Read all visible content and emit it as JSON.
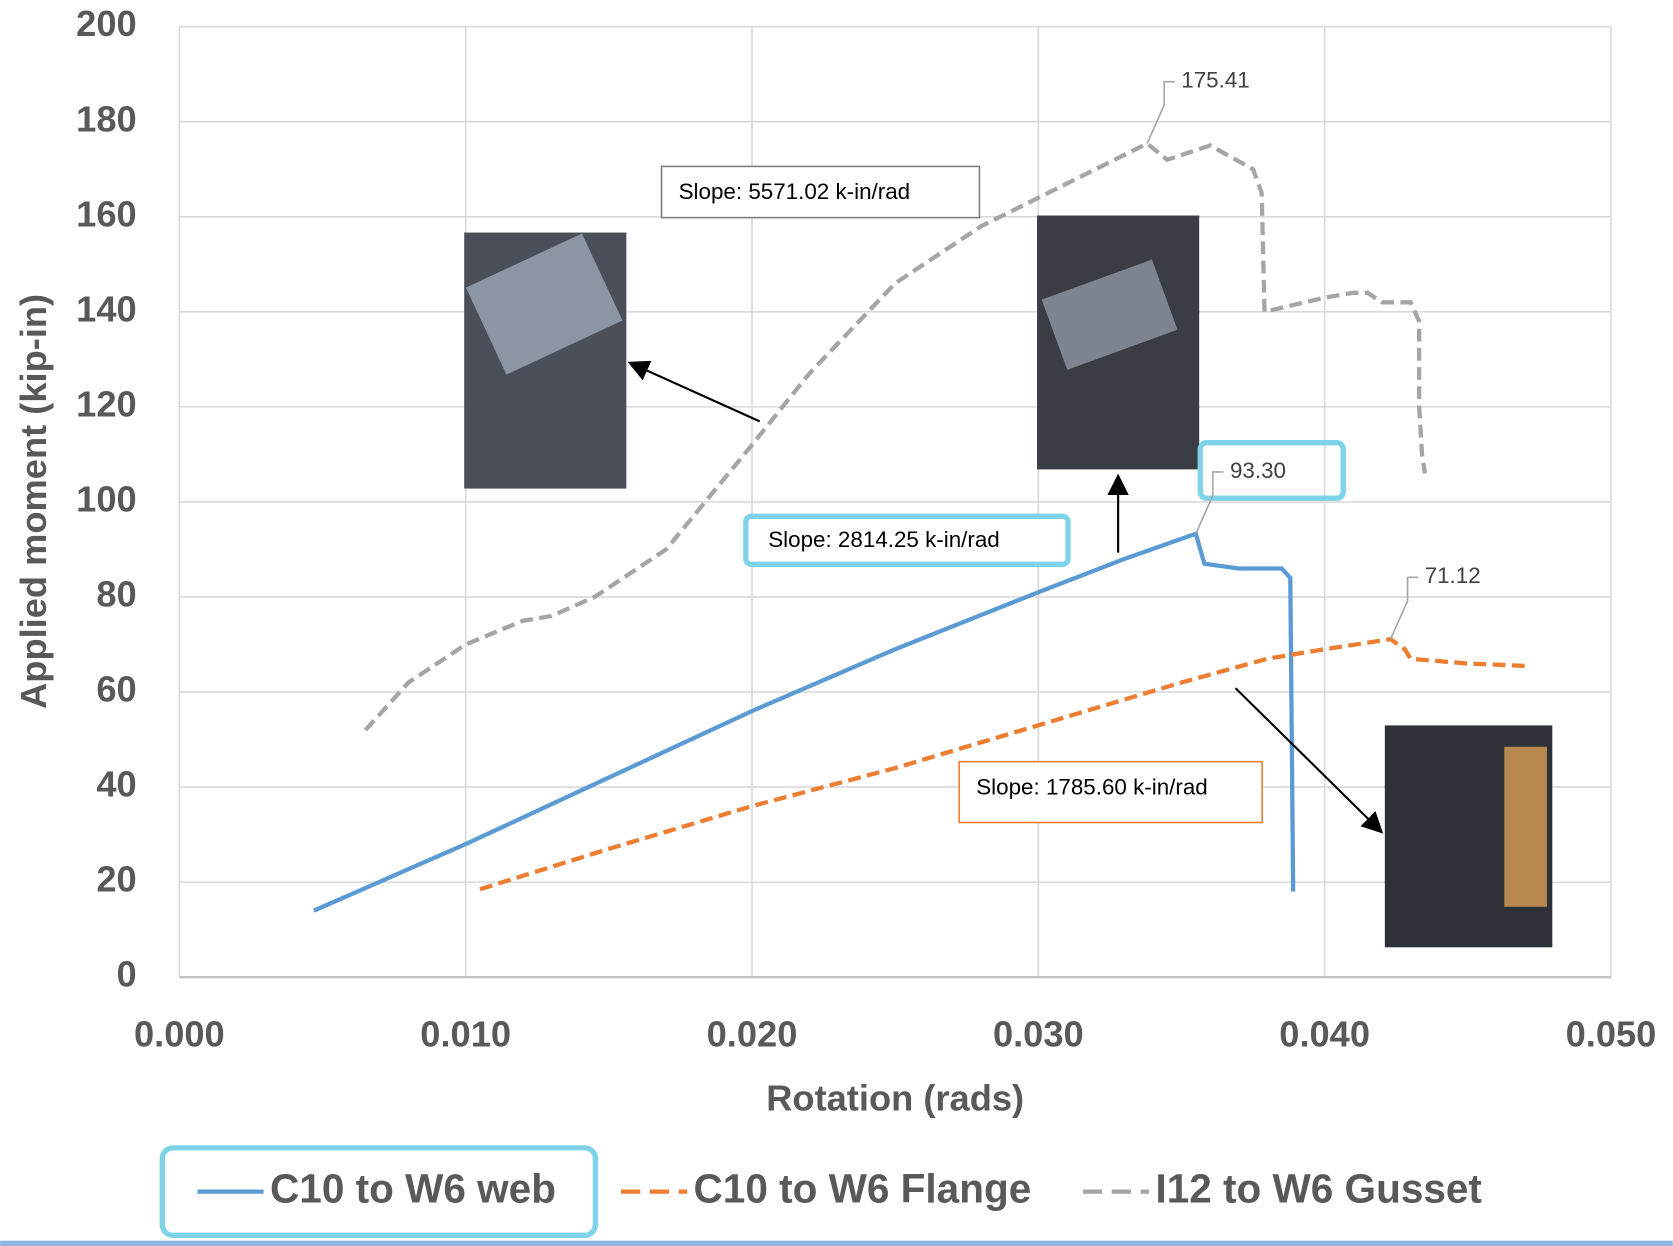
{
  "chart_data": {
    "type": "line",
    "x_label": "Rotation (rads)",
    "y_label": "Applied moment (kip-in)",
    "xlim": [
      0,
      0.05
    ],
    "xticks": [
      {
        "value": 0,
        "label": "0.000"
      },
      {
        "value": 0.01,
        "label": "0.010"
      },
      {
        "value": 0.02,
        "label": "0.020"
      },
      {
        "value": 0.03,
        "label": "0.030"
      },
      {
        "value": 0.04,
        "label": "0.040"
      },
      {
        "value": 0.05,
        "label": "0.050"
      }
    ],
    "ylim": [
      0,
      200
    ],
    "yticks": [
      0,
      20,
      40,
      60,
      80,
      100,
      120,
      140,
      160,
      180,
      200
    ],
    "grid": true,
    "legend": "bottom",
    "series": [
      {
        "name": "C10 to W6 web",
        "color": "#5b9bd5",
        "dash": "solid",
        "x": [
          0.0047,
          0.01,
          0.015,
          0.02,
          0.025,
          0.03,
          0.033,
          0.0355,
          0.0358,
          0.037,
          0.0385,
          0.0388,
          0.0389
        ],
        "values": [
          14,
          28,
          42,
          56,
          69,
          81,
          88,
          93.3,
          87,
          86,
          86,
          84,
          18
        ]
      },
      {
        "name": "C10 to W6 Flange",
        "color": "#ed7d31",
        "dash": "dash",
        "x": [
          0.0105,
          0.015,
          0.02,
          0.025,
          0.03,
          0.035,
          0.038,
          0.04,
          0.0423,
          0.0428,
          0.043,
          0.045,
          0.047
        ],
        "values": [
          18.5,
          27,
          36,
          44,
          53,
          62,
          67,
          69,
          71.12,
          69,
          67,
          66,
          65.5
        ]
      },
      {
        "name": "I12 to W6 Gusset",
        "color": "#a5a5a5",
        "dash": "dash",
        "x": [
          0.0065,
          0.008,
          0.01,
          0.012,
          0.013,
          0.0145,
          0.017,
          0.02,
          0.022,
          0.025,
          0.028,
          0.03,
          0.032,
          0.0338,
          0.0345,
          0.036,
          0.0375,
          0.0378,
          0.0379,
          0.04,
          0.041,
          0.0415,
          0.042,
          0.043,
          0.0433,
          0.0433,
          0.0434,
          0.0435
        ],
        "values": [
          52,
          62,
          70,
          75,
          76,
          80,
          90,
          112,
          127,
          146,
          158,
          164,
          170,
          175.41,
          172,
          175,
          170,
          165,
          140,
          143,
          144,
          144,
          142,
          142,
          138,
          120,
          110,
          106
        ]
      }
    ],
    "peak_labels": [
      {
        "x": 0.0338,
        "value": 175.41,
        "label": "175.41"
      },
      {
        "x": 0.0355,
        "value": 93.3,
        "label": "93.30"
      },
      {
        "x": 0.0423,
        "value": 71.12,
        "label": "71.12"
      }
    ],
    "annotations": [
      "Slope: 5571.02 k-in/rad",
      "Slope: 2814.25 k-in/rad",
      "Slope: 1785.60 k-in/rad"
    ]
  }
}
